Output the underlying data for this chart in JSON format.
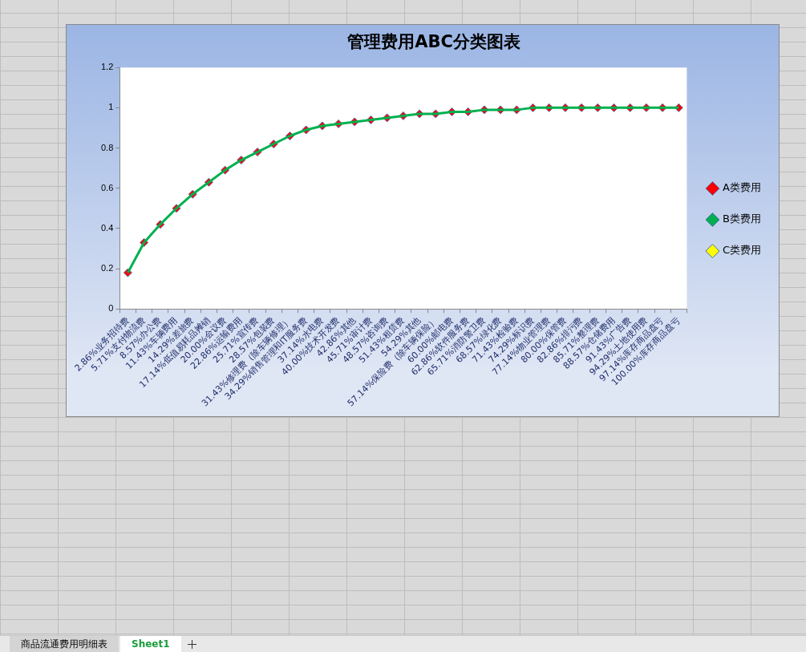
{
  "chart_data": {
    "type": "line",
    "title": "管理费用ABC分类图表",
    "categories": [
      "2.86%业务招待费",
      "5.71%支付物流费",
      "8.57%办公费",
      "11.43%车辆费用",
      "14.29%差旅费",
      "17.14%低值易耗品摊销",
      "20.00%会议费",
      "22.86%运输费用",
      "25.71%宣传费",
      "28.57%包装费",
      "31.43%修理费（除车辆修理）",
      "34.29%销售管理和IT服务费",
      "37.14%水电费",
      "40.00%技术开发费",
      "42.86%其他",
      "45.71%审计费",
      "48.57%咨询费",
      "51.43%租赁费",
      "54.29%其他",
      "57.14%保险费（除车辆保险）",
      "60.00%邮电费",
      "62.86%软件服务费",
      "65.71%消防警卫费",
      "68.57%绿化费",
      "71.43%检验费",
      "74.29%标识费",
      "77.14%物业管理费",
      "80.00%保管费",
      "82.86%排污费",
      "85.71%整理费",
      "88.57%仓储费用",
      "91.43%广告费",
      "94.29%土地使用费",
      "97.14%库存商品盘亏",
      "100.00%库存商品盘亏"
    ],
    "series": [
      {
        "type": "line",
        "color": "#00b050",
        "marker": "none",
        "values": [
          0.18,
          0.33,
          0.42,
          0.5,
          0.57,
          0.63,
          0.69,
          0.74,
          0.78,
          0.82,
          0.86,
          0.89,
          0.91,
          0.92,
          0.93,
          0.94,
          0.95,
          0.96,
          0.97,
          0.97,
          0.98,
          0.98,
          0.99,
          0.99,
          0.99,
          1.0,
          1.0,
          1.0,
          1.0,
          1.0,
          1.0,
          1.0,
          1.0,
          1.0,
          1.0
        ]
      },
      {
        "type": "scatter",
        "name": "A类费用",
        "color": "#ff0000",
        "marker": "diamond",
        "values": [
          0.18,
          0.33,
          0.42,
          0.5,
          0.57,
          0.63,
          0.69,
          0.74,
          0.78,
          0.82,
          0.86,
          0.89,
          0.91,
          0.92,
          0.93,
          0.94,
          0.95,
          0.96,
          0.97,
          0.97,
          0.98,
          0.98,
          0.99,
          0.99,
          0.99,
          1.0,
          1.0,
          1.0,
          1.0,
          1.0,
          1.0,
          1.0,
          1.0,
          1.0,
          1.0
        ]
      },
      {
        "type": "scatter",
        "name": "B类费用",
        "color": "#00b050",
        "marker": "diamond",
        "values": [
          null,
          null,
          null,
          null,
          null,
          null,
          null,
          null,
          null,
          null,
          null,
          null,
          null,
          null,
          null,
          null,
          null,
          null,
          null,
          null,
          null,
          null,
          null,
          null,
          null,
          null,
          null,
          null,
          null,
          null,
          null,
          null,
          null,
          null,
          null
        ]
      },
      {
        "type": "scatter",
        "name": "C类费用",
        "color": "#ffff00",
        "marker": "diamond",
        "values": [
          null,
          null,
          null,
          null,
          null,
          null,
          null,
          null,
          null,
          null,
          null,
          null,
          null,
          null,
          null,
          null,
          null,
          null,
          null,
          null,
          null,
          null,
          null,
          null,
          null,
          null,
          null,
          null,
          null,
          null,
          null,
          null,
          null,
          null,
          null
        ]
      }
    ],
    "ylim": [
      0,
      1.2
    ],
    "yticks": [
      0,
      0.2,
      0.4,
      0.6,
      0.8,
      1,
      1.2
    ],
    "grid": false,
    "legend": "right",
    "annotations": [
      "商品流通费用明细表",
      "Sheet1"
    ]
  }
}
